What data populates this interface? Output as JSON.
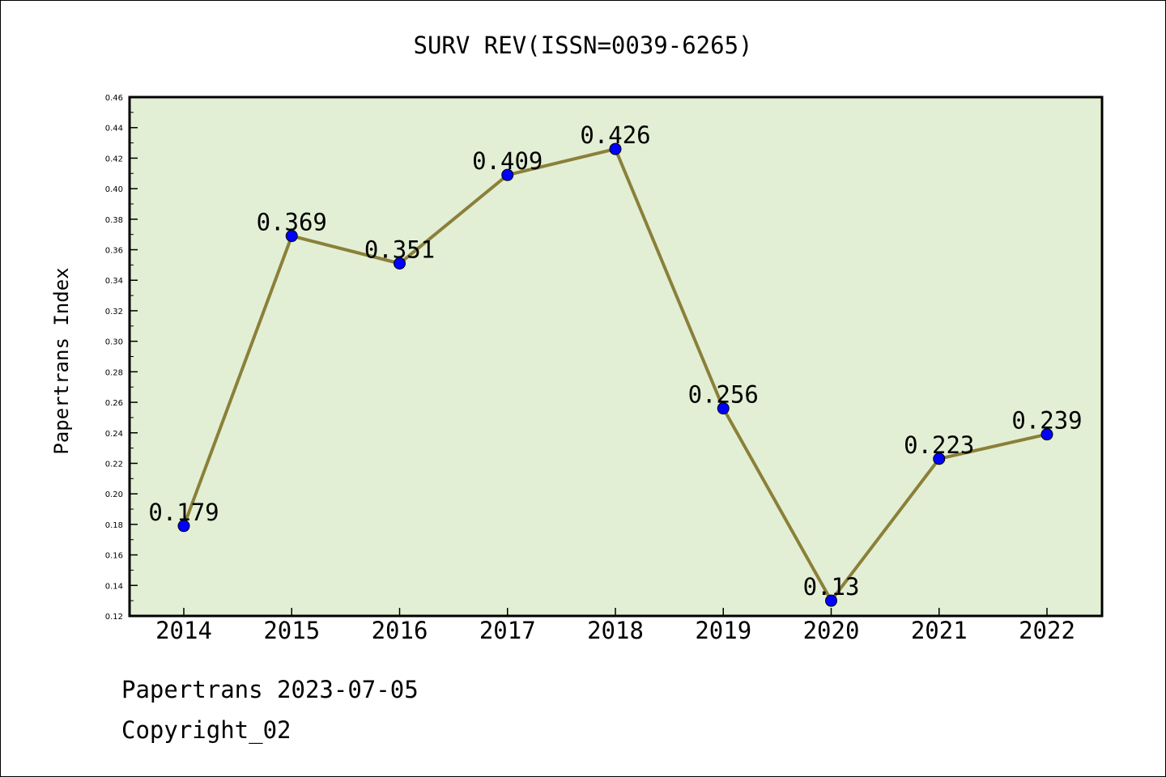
{
  "chart_data": {
    "type": "line",
    "title": "SURV REV(ISSN=0039-6265)",
    "xlabel": "",
    "ylabel": "Papertrans Index",
    "categories": [
      "2014",
      "2015",
      "2016",
      "2017",
      "2018",
      "2019",
      "2020",
      "2021",
      "2022"
    ],
    "series": [
      {
        "values": [
          0.179,
          0.369,
          0.351,
          0.409,
          0.426,
          0.256,
          0.13,
          0.223,
          0.239
        ],
        "labels": [
          "0.179",
          "0.369",
          "0.351",
          "0.409",
          "0.426",
          "0.256",
          "0.13",
          "0.223",
          "0.239"
        ]
      }
    ],
    "ylim": [
      0.12,
      0.46
    ],
    "yticks": [
      "0.12",
      "0.14",
      "0.16",
      "0.18",
      "0.20",
      "0.22",
      "0.24",
      "0.26",
      "0.28",
      "0.30",
      "0.32",
      "0.34",
      "0.36",
      "0.38",
      "0.40",
      "0.42",
      "0.44",
      "0.46"
    ],
    "grid": false,
    "colors": {
      "plot_background": "#e2efd5",
      "line": "#8b8039",
      "marker": "#0000ff"
    }
  },
  "footer": {
    "line1": "Papertrans 2023-07-05",
    "line2": "Copyright_02"
  }
}
